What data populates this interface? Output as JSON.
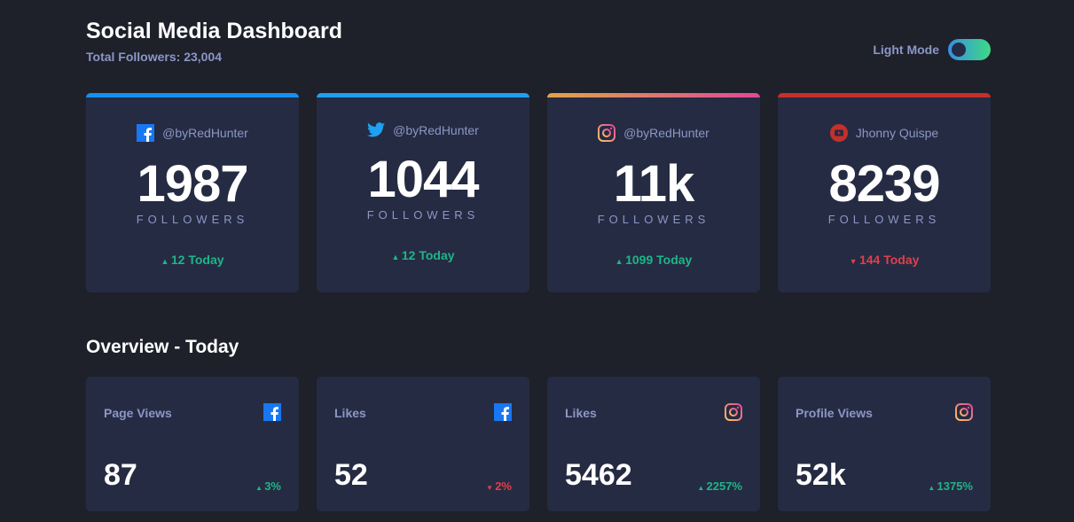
{
  "header": {
    "title": "Social Media Dashboard",
    "total_followers": "Total Followers: 23,004",
    "mode_label": "Light Mode"
  },
  "colors": {
    "facebook": "#1877f2",
    "twitter": "#1da1f2",
    "instagram_start": "#fdc468",
    "instagram_end": "#df4996",
    "youtube": "#c4032a",
    "up": "#1eb589",
    "down": "#dc414c"
  },
  "followers": [
    {
      "network": "facebook",
      "icon": "facebook-icon",
      "handle": "@byRedHunter",
      "count": "1987",
      "label": "FOLLOWERS",
      "today": "12 Today",
      "trend": "up"
    },
    {
      "network": "twitter",
      "icon": "twitter-icon",
      "handle": "@byRedHunter",
      "count": "1044",
      "label": "FOLLOWERS",
      "today": "12 Today",
      "trend": "up"
    },
    {
      "network": "instagram",
      "icon": "instagram-icon",
      "handle": "@byRedHunter",
      "count": "11k",
      "label": "FOLLOWERS",
      "today": "1099 Today",
      "trend": "up"
    },
    {
      "network": "youtube",
      "icon": "youtube-icon",
      "handle": "Jhonny Quispe",
      "count": "8239",
      "label": "FOLLOWERS",
      "today": "144 Today",
      "trend": "down"
    }
  ],
  "overview": {
    "title": "Overview - Today",
    "cards": [
      {
        "title": "Page Views",
        "icon": "facebook-icon",
        "value": "87",
        "change": "3%",
        "trend": "up"
      },
      {
        "title": "Likes",
        "icon": "facebook-icon",
        "value": "52",
        "change": "2%",
        "trend": "down"
      },
      {
        "title": "Likes",
        "icon": "instagram-icon",
        "value": "5462",
        "change": "2257%",
        "trend": "up"
      },
      {
        "title": "Profile Views",
        "icon": "instagram-icon",
        "value": "52k",
        "change": "1375%",
        "trend": "up"
      }
    ]
  }
}
